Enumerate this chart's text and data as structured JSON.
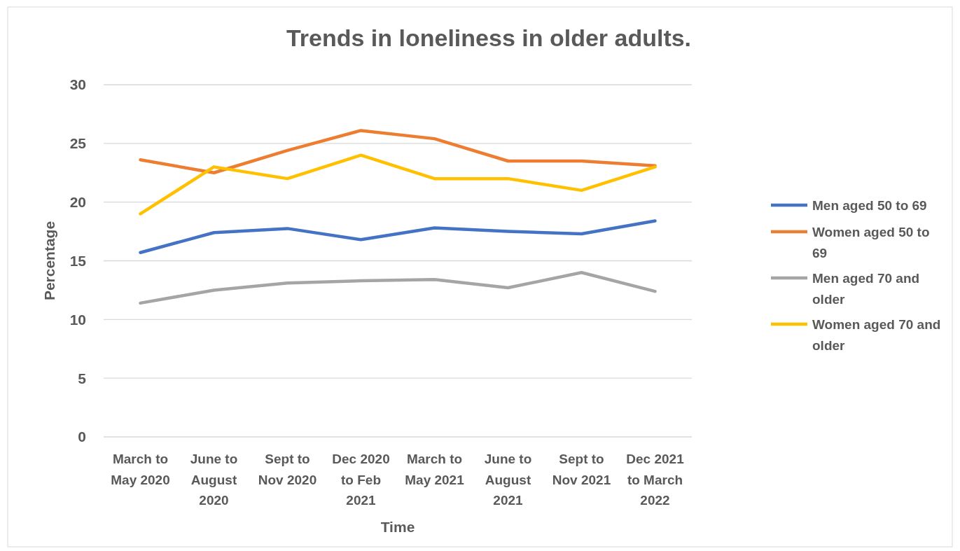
{
  "chart_data": {
    "type": "line",
    "title": "Trends in loneliness in older adults.",
    "xlabel": "Time",
    "ylabel": "Percentage",
    "categories": [
      "March to May 2020",
      "June to August 2020",
      "Sept to Nov 2020",
      "Dec 2020 to Feb 2021",
      "March to May 2021",
      "June to August 2021",
      "Sept to Nov 2021",
      "Dec 2021 to March 2022"
    ],
    "series": [
      {
        "name": "Men aged 50 to 69",
        "color": "#4472c4",
        "values": [
          15.7,
          17.4,
          17.75,
          16.8,
          17.8,
          17.5,
          17.3,
          18.4
        ]
      },
      {
        "name": "Women aged 50 to 69",
        "color": "#ed7d31",
        "values": [
          23.6,
          22.5,
          24.4,
          26.1,
          25.4,
          23.5,
          23.5,
          23.1
        ]
      },
      {
        "name": "Men aged 70 and older",
        "color": "#a5a5a5",
        "values": [
          11.4,
          12.5,
          13.1,
          13.3,
          13.4,
          12.7,
          14,
          12.4
        ]
      },
      {
        "name": "Women aged 70 and older",
        "color": "#ffc000",
        "values": [
          19,
          23,
          22,
          24,
          22,
          22,
          21,
          23
        ]
      }
    ],
    "ylim": [
      0,
      30
    ],
    "yticks": [
      0,
      5,
      10,
      15,
      20,
      25,
      30
    ],
    "grid": "y",
    "legend": "right",
    "marker": "none",
    "line_style": "solid"
  }
}
